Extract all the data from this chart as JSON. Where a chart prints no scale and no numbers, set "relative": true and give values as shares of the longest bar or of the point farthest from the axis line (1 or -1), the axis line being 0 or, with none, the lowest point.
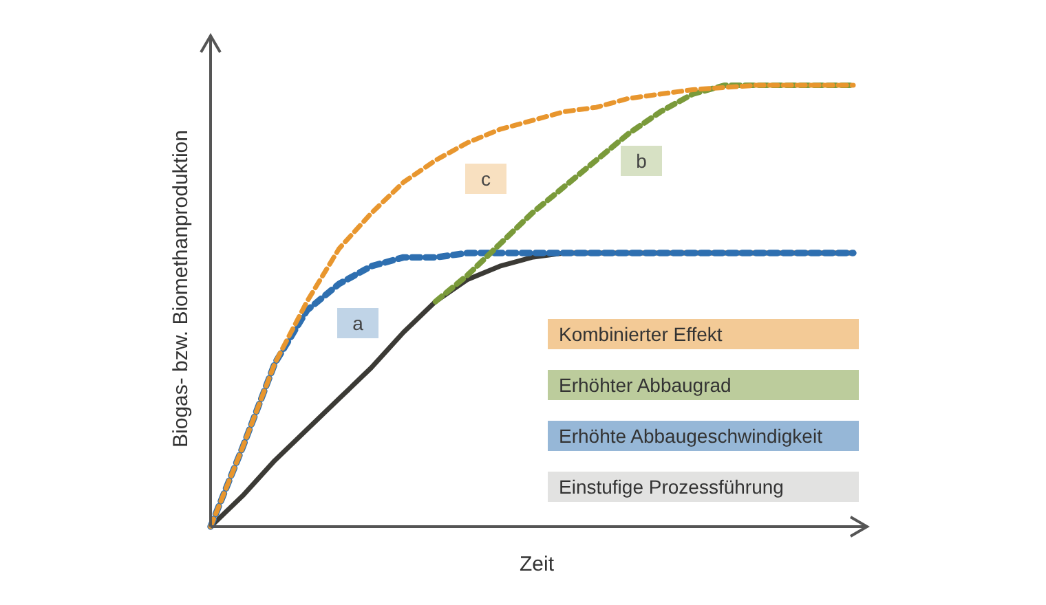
{
  "chart_data": {
    "type": "line",
    "relative": true,
    "xlabel": "Zeit",
    "ylabel": "Biogas- bzw. Biomethanproduktion",
    "categories": [
      null,
      null,
      null,
      null,
      null,
      null,
      null,
      null,
      null,
      null,
      null,
      null,
      null,
      null,
      null,
      null,
      null,
      null,
      null,
      null,
      null
    ],
    "series": [
      {
        "name": "Kombinierter Effekt",
        "color": "#e8962e",
        "line_style": "dashed",
        "values": [
          0,
          0.18,
          0.37,
          0.51,
          0.63,
          0.71,
          0.78,
          0.83,
          0.87,
          0.9,
          0.92,
          0.94,
          0.95,
          0.97,
          0.98,
          0.99,
          0.995,
          1,
          1,
          1,
          1
        ]
      },
      {
        "name": "Erhöhter Abbaugrad",
        "color": "#7a9a3a",
        "line_style": "dashed",
        "values": [
          null,
          null,
          null,
          null,
          null,
          null,
          null,
          0.51,
          0.57,
          0.64,
          0.71,
          0.77,
          0.83,
          0.89,
          0.94,
          0.98,
          1,
          1,
          1,
          1,
          1
        ]
      },
      {
        "name": "Erhöhte Abbaugeschwindigkeit",
        "color": "#2e6fb0",
        "line_style": "dashed",
        "values": [
          0,
          0.18,
          0.37,
          0.49,
          0.55,
          0.59,
          0.61,
          0.61,
          0.62,
          0.62,
          0.62,
          0.62,
          0.62,
          0.62,
          0.62,
          0.62,
          0.62,
          0.62,
          0.62,
          0.62,
          0.62
        ]
      },
      {
        "name": "Einstufige Prozessführung",
        "color": "#3b3a35",
        "line_style": "solid",
        "values": [
          0,
          0.07,
          0.15,
          0.22,
          0.29,
          0.36,
          0.44,
          0.51,
          0.56,
          0.59,
          0.61,
          0.62,
          0.62,
          0.62,
          0.62,
          0.62,
          0.62,
          0.62,
          0.62,
          0.62,
          0.62
        ]
      }
    ],
    "legend": "bottom right",
    "marker": "none",
    "grid": false,
    "annotations": [
      "a",
      "b",
      "c"
    ]
  }
}
